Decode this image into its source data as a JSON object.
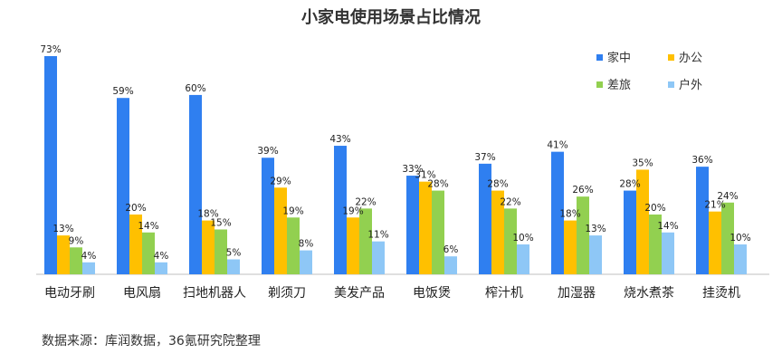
{
  "chart_data": {
    "type": "bar",
    "title": "小家电使用场景占比情况",
    "categories": [
      "电动牙刷",
      "电风扇",
      "扫地机器人",
      "剃须刀",
      "美发产品",
      "电饭煲",
      "榨汁机",
      "加湿器",
      "烧水煮茶",
      "挂烫机"
    ],
    "series": [
      {
        "name": "家中",
        "color": "#2f7ff0",
        "values": [
          73,
          59,
          60,
          39,
          43,
          33,
          37,
          41,
          28,
          36
        ]
      },
      {
        "name": "办公",
        "color": "#ffc000",
        "values": [
          13,
          20,
          18,
          29,
          19,
          31,
          28,
          18,
          35,
          21
        ]
      },
      {
        "name": "差旅",
        "color": "#92d050",
        "values": [
          9,
          14,
          15,
          19,
          22,
          28,
          22,
          26,
          20,
          24
        ]
      },
      {
        "name": "户外",
        "color": "#8ec7f6",
        "values": [
          4,
          4,
          5,
          8,
          11,
          6,
          10,
          13,
          14,
          10
        ]
      }
    ],
    "value_suffix": "%",
    "ylim": [
      0,
      80
    ],
    "grid": false,
    "legend_position": "top-right"
  },
  "footer": {
    "source": "数据来源：库润数据，36氪研究院整理"
  }
}
